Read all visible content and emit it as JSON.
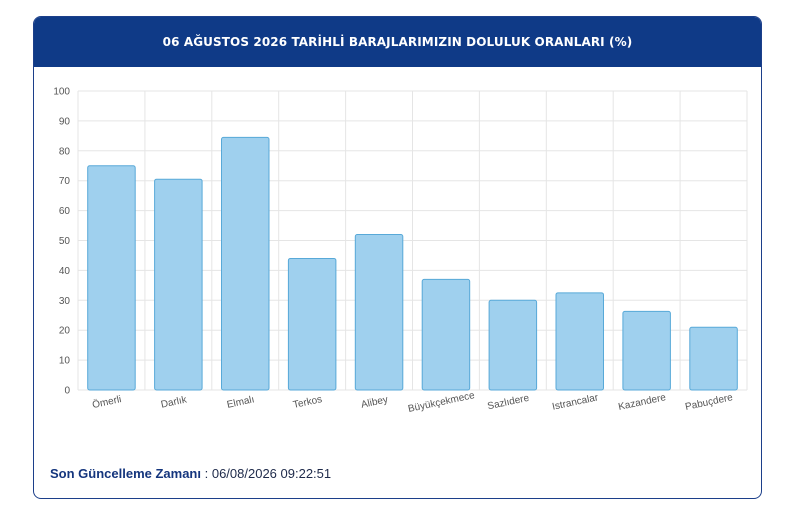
{
  "header": {
    "title": "06 AĞUSTOS 2026 TARİHLİ BARAJLARIMIZIN DOLULUK ORANLARI (%)"
  },
  "footer": {
    "label": "Son Güncelleme Zamanı",
    "separator": " : ",
    "value": "06/08/2026 09:22:51"
  },
  "colors": {
    "bar_fill": "#9fd0ee",
    "bar_stroke": "#58a9d8",
    "header_bg": "#0f3a87",
    "grid": "#e5e5e5"
  },
  "chart_data": {
    "type": "bar",
    "title": "06 AĞUSTOS 2026 TARİHLİ BARAJLARIMIZIN DOLULUK ORANLARI (%)",
    "categories": [
      "Ömerli",
      "Darlık",
      "Elmalı",
      "Terkos",
      "Alibey",
      "Büyükçekmece",
      "Sazlıdere",
      "Istrancalar",
      "Kazandere",
      "Pabuçdere"
    ],
    "values": [
      75,
      70.5,
      84.5,
      44,
      52,
      37,
      30,
      32.5,
      26.3,
      21
    ],
    "ylim": [
      0,
      100
    ],
    "yticks": [
      0,
      10,
      20,
      30,
      40,
      50,
      60,
      70,
      80,
      90,
      100
    ],
    "grid": true,
    "xlabel": "",
    "ylabel": ""
  }
}
